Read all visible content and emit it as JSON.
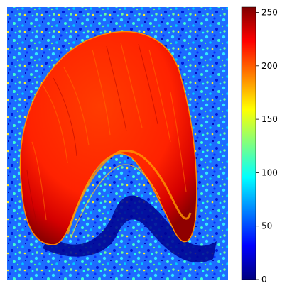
{
  "chart_data": {
    "type": "heatmap",
    "title": "",
    "xlabel": "",
    "ylabel": "",
    "axes_visible": false,
    "colormap": "jet",
    "colorbar": {
      "range": [
        0,
        255
      ],
      "ticks": [
        0,
        50,
        100,
        150,
        200,
        250
      ],
      "tick_labels": [
        "0",
        "50",
        "100",
        "150",
        "200",
        "250"
      ]
    },
    "description_of_field": {
      "background_level": 60,
      "shape_level": 210,
      "shadow_level": 10
    }
  }
}
